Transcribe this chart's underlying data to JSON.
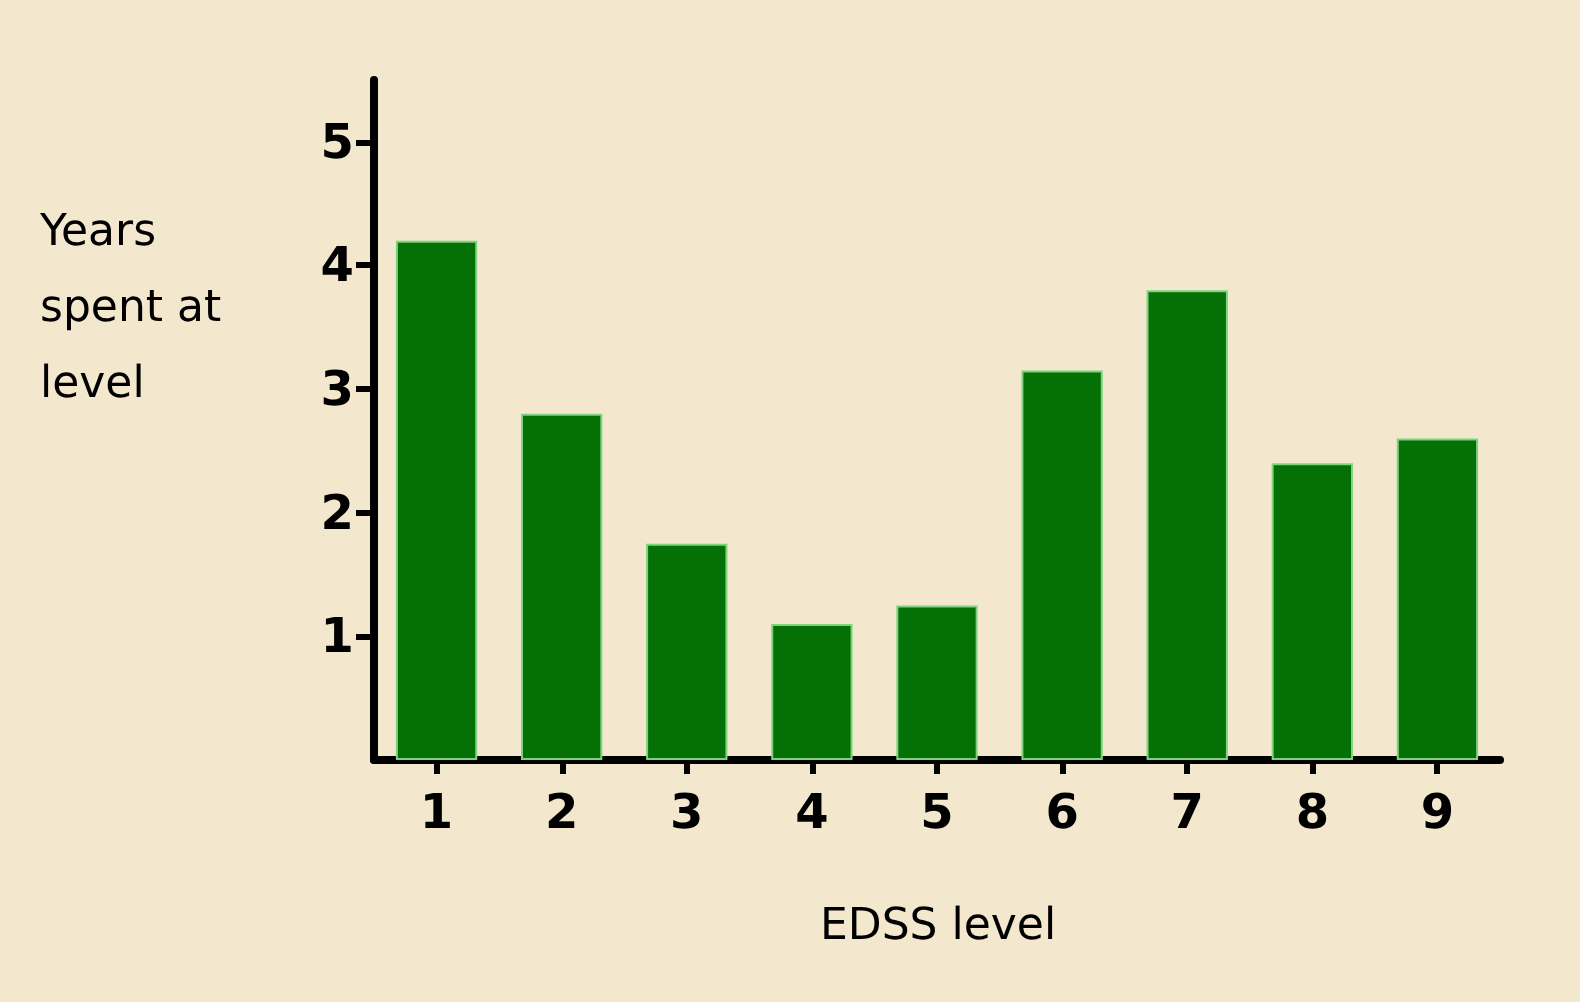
{
  "chart_data": {
    "type": "bar",
    "xlabel": "EDSS level",
    "ylabel": "Years spent at level",
    "categories": [
      "1",
      "2",
      "3",
      "4",
      "5",
      "6",
      "7",
      "8",
      "9"
    ],
    "values": [
      4.2,
      2.8,
      1.75,
      1.1,
      1.25,
      3.15,
      3.8,
      2.4,
      2.6
    ],
    "color": "#057005",
    "ylim": [
      0,
      5.5
    ],
    "yticks": [
      1,
      2,
      3,
      4,
      5
    ],
    "grid": false
  }
}
